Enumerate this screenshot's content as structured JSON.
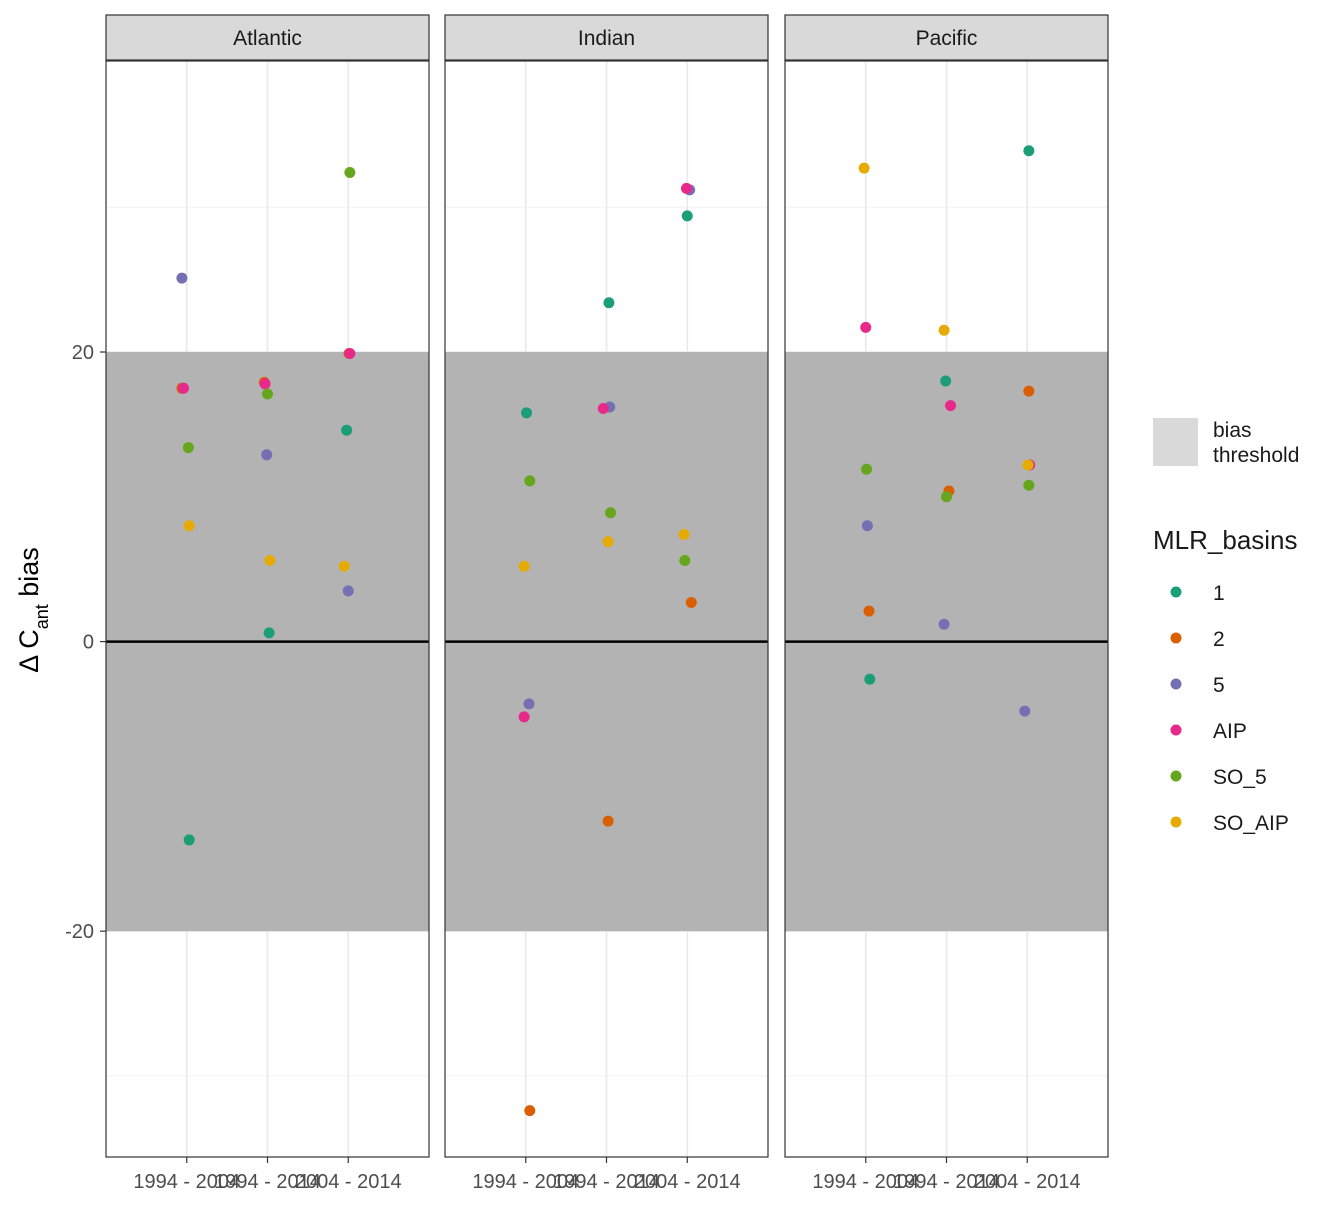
{
  "chart_data": {
    "type": "scatter",
    "facets": [
      "Atlantic",
      "Indian",
      "Pacific"
    ],
    "categories": [
      "1994 - 2004",
      "1994 - 2014",
      "2004 - 2014"
    ],
    "ylabel": {
      "prefix": "Δ C",
      "subscript": "ant",
      "suffix": " bias"
    },
    "xlabel": "",
    "ylim": [
      -35.6,
      40.1
    ],
    "y_ticks": [
      -20,
      0,
      20
    ],
    "y_tick_labels": [
      "-20",
      "0",
      "20"
    ],
    "bias_threshold": [
      -20,
      20
    ],
    "reference_line": 0,
    "legend_position": "right",
    "fill_legend": {
      "label_line1": "bias",
      "label_line2": "threshold",
      "color": "#d9d9d9"
    },
    "band_color": "#b3b3b3",
    "series_legend_title": "MLR_basins",
    "series": [
      {
        "name": "1",
        "color": "#1b9e77",
        "points": [
          {
            "facet": "Atlantic",
            "x": "1994 - 2004",
            "y": -13.7,
            "jitter": 0.03
          },
          {
            "facet": "Atlantic",
            "x": "1994 - 2014",
            "y": 0.6,
            "jitter": 0.02
          },
          {
            "facet": "Atlantic",
            "x": "2004 - 2014",
            "y": 14.6,
            "jitter": -0.02
          },
          {
            "facet": "Indian",
            "x": "1994 - 2004",
            "y": 15.8,
            "jitter": 0.01
          },
          {
            "facet": "Indian",
            "x": "1994 - 2014",
            "y": 23.4,
            "jitter": 0.03
          },
          {
            "facet": "Indian",
            "x": "2004 - 2014",
            "y": 29.4,
            "jitter": 0.0
          },
          {
            "facet": "Pacific",
            "x": "1994 - 2004",
            "y": -2.6,
            "jitter": 0.05
          },
          {
            "facet": "Pacific",
            "x": "1994 - 2014",
            "y": 18.0,
            "jitter": -0.01
          },
          {
            "facet": "Pacific",
            "x": "2004 - 2014",
            "y": 33.9,
            "jitter": 0.02
          }
        ]
      },
      {
        "name": "2",
        "color": "#d95f02",
        "points": [
          {
            "facet": "Atlantic",
            "x": "1994 - 2004",
            "y": 17.5,
            "jitter": -0.06
          },
          {
            "facet": "Atlantic",
            "x": "1994 - 2014",
            "y": 17.9,
            "jitter": -0.04
          },
          {
            "facet": "Atlantic",
            "x": "2004 - 2014",
            "y": 19.9,
            "jitter": 0.01
          },
          {
            "facet": "Indian",
            "x": "1994 - 2004",
            "y": -32.4,
            "jitter": 0.05
          },
          {
            "facet": "Indian",
            "x": "1994 - 2014",
            "y": -12.4,
            "jitter": 0.02
          },
          {
            "facet": "Indian",
            "x": "2004 - 2014",
            "y": 2.7,
            "jitter": 0.05
          },
          {
            "facet": "Pacific",
            "x": "1994 - 2004",
            "y": 2.1,
            "jitter": 0.04
          },
          {
            "facet": "Pacific",
            "x": "1994 - 2014",
            "y": 10.4,
            "jitter": 0.03
          },
          {
            "facet": "Pacific",
            "x": "2004 - 2014",
            "y": 17.3,
            "jitter": 0.02
          }
        ]
      },
      {
        "name": "5",
        "color": "#7570b3",
        "points": [
          {
            "facet": "Atlantic",
            "x": "1994 - 2004",
            "y": 25.1,
            "jitter": -0.06
          },
          {
            "facet": "Atlantic",
            "x": "1994 - 2014",
            "y": 12.9,
            "jitter": -0.01
          },
          {
            "facet": "Atlantic",
            "x": "2004 - 2014",
            "y": 3.5,
            "jitter": 0.0
          },
          {
            "facet": "Indian",
            "x": "1994 - 2004",
            "y": -4.3,
            "jitter": 0.04
          },
          {
            "facet": "Indian",
            "x": "1994 - 2014",
            "y": 16.2,
            "jitter": 0.04
          },
          {
            "facet": "Indian",
            "x": "2004 - 2014",
            "y": 31.2,
            "jitter": 0.03
          },
          {
            "facet": "Pacific",
            "x": "1994 - 2004",
            "y": 8.0,
            "jitter": 0.02
          },
          {
            "facet": "Pacific",
            "x": "1994 - 2014",
            "y": 1.2,
            "jitter": -0.03
          },
          {
            "facet": "Pacific",
            "x": "2004 - 2014",
            "y": -4.8,
            "jitter": -0.03
          }
        ]
      },
      {
        "name": "AIP",
        "color": "#e7298a",
        "points": [
          {
            "facet": "Atlantic",
            "x": "1994 - 2004",
            "y": 17.5,
            "jitter": -0.04
          },
          {
            "facet": "Atlantic",
            "x": "1994 - 2014",
            "y": 17.8,
            "jitter": -0.03
          },
          {
            "facet": "Atlantic",
            "x": "2004 - 2014",
            "y": 19.9,
            "jitter": 0.02
          },
          {
            "facet": "Indian",
            "x": "1994 - 2004",
            "y": -5.2,
            "jitter": -0.02
          },
          {
            "facet": "Indian",
            "x": "1994 - 2014",
            "y": 16.1,
            "jitter": -0.04
          },
          {
            "facet": "Indian",
            "x": "2004 - 2014",
            "y": 31.3,
            "jitter": -0.01
          },
          {
            "facet": "Pacific",
            "x": "1994 - 2004",
            "y": 21.7,
            "jitter": 0.0
          },
          {
            "facet": "Pacific",
            "x": "1994 - 2014",
            "y": 16.3,
            "jitter": 0.05
          },
          {
            "facet": "Pacific",
            "x": "2004 - 2014",
            "y": 12.2,
            "jitter": 0.03
          }
        ]
      },
      {
        "name": "SO_5",
        "color": "#66a61e",
        "points": [
          {
            "facet": "Atlantic",
            "x": "1994 - 2004",
            "y": 13.4,
            "jitter": 0.02
          },
          {
            "facet": "Atlantic",
            "x": "1994 - 2014",
            "y": 17.1,
            "jitter": 0.0
          },
          {
            "facet": "Atlantic",
            "x": "2004 - 2014",
            "y": 32.4,
            "jitter": 0.02
          },
          {
            "facet": "Indian",
            "x": "1994 - 2004",
            "y": 11.1,
            "jitter": 0.05
          },
          {
            "facet": "Indian",
            "x": "1994 - 2014",
            "y": 8.9,
            "jitter": 0.05
          },
          {
            "facet": "Indian",
            "x": "2004 - 2014",
            "y": 5.6,
            "jitter": -0.03
          },
          {
            "facet": "Pacific",
            "x": "1994 - 2004",
            "y": 11.9,
            "jitter": 0.01
          },
          {
            "facet": "Pacific",
            "x": "1994 - 2014",
            "y": 10.0,
            "jitter": 0.0
          },
          {
            "facet": "Pacific",
            "x": "2004 - 2014",
            "y": 10.8,
            "jitter": 0.02
          }
        ]
      },
      {
        "name": "SO_AIP",
        "color": "#e6ab02",
        "points": [
          {
            "facet": "Atlantic",
            "x": "1994 - 2004",
            "y": 8.0,
            "jitter": 0.03
          },
          {
            "facet": "Atlantic",
            "x": "1994 - 2014",
            "y": 5.6,
            "jitter": 0.03
          },
          {
            "facet": "Atlantic",
            "x": "2004 - 2014",
            "y": 5.2,
            "jitter": -0.05
          },
          {
            "facet": "Indian",
            "x": "1994 - 2004",
            "y": 5.2,
            "jitter": -0.02
          },
          {
            "facet": "Indian",
            "x": "1994 - 2014",
            "y": 6.9,
            "jitter": 0.02
          },
          {
            "facet": "Indian",
            "x": "2004 - 2014",
            "y": 7.4,
            "jitter": -0.04
          },
          {
            "facet": "Pacific",
            "x": "1994 - 2004",
            "y": 32.7,
            "jitter": -0.02
          },
          {
            "facet": "Pacific",
            "x": "1994 - 2014",
            "y": 21.5,
            "jitter": -0.03
          },
          {
            "facet": "Pacific",
            "x": "2004 - 2014",
            "y": 12.2,
            "jitter": 0.01
          }
        ]
      }
    ]
  }
}
